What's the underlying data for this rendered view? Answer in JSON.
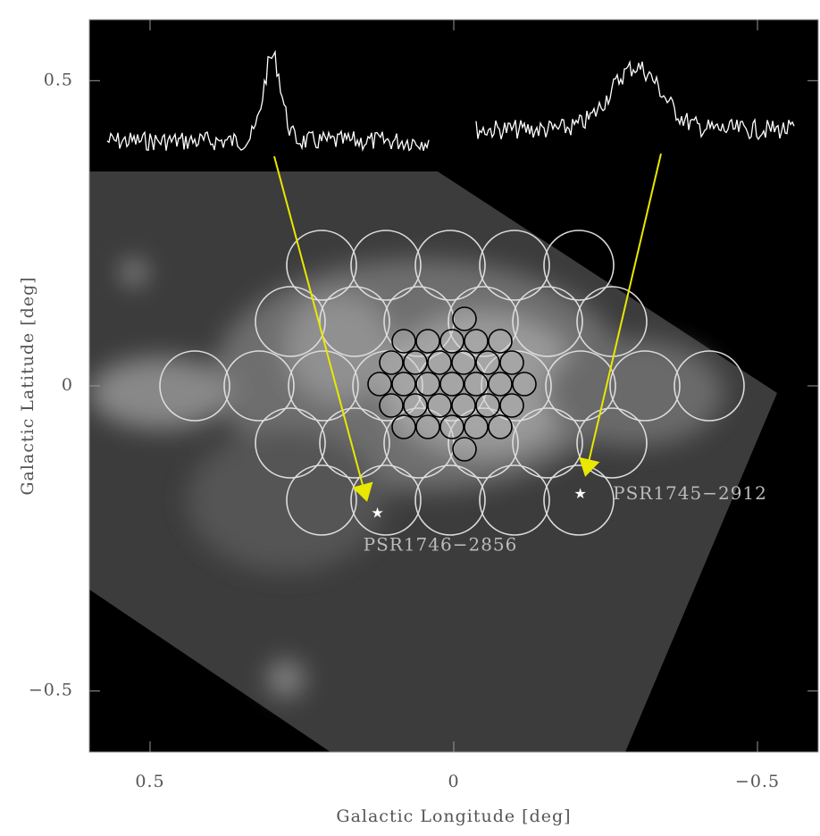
{
  "chart_data": {
    "type": "scatter",
    "xlabel": "Galactic Longitude [deg]",
    "ylabel": "Galactic Latitude [deg]",
    "xlim": [
      0.6,
      -0.6
    ],
    "ylim": [
      -0.6,
      0.6
    ],
    "xticks": [
      0.5,
      0,
      {
        "value": -0.5,
        "label": "−0.5"
      }
    ],
    "yticks": [
      0.5,
      0,
      {
        "value": -0.5,
        "label": "−0.5"
      }
    ],
    "x": [
      0.125,
      -0.209
    ],
    "values": [
      -0.209,
      -0.178
    ],
    "point_labels": [
      "PSR1746−2856",
      "PSR1745−2912"
    ],
    "color": "#ffffff"
  }
}
